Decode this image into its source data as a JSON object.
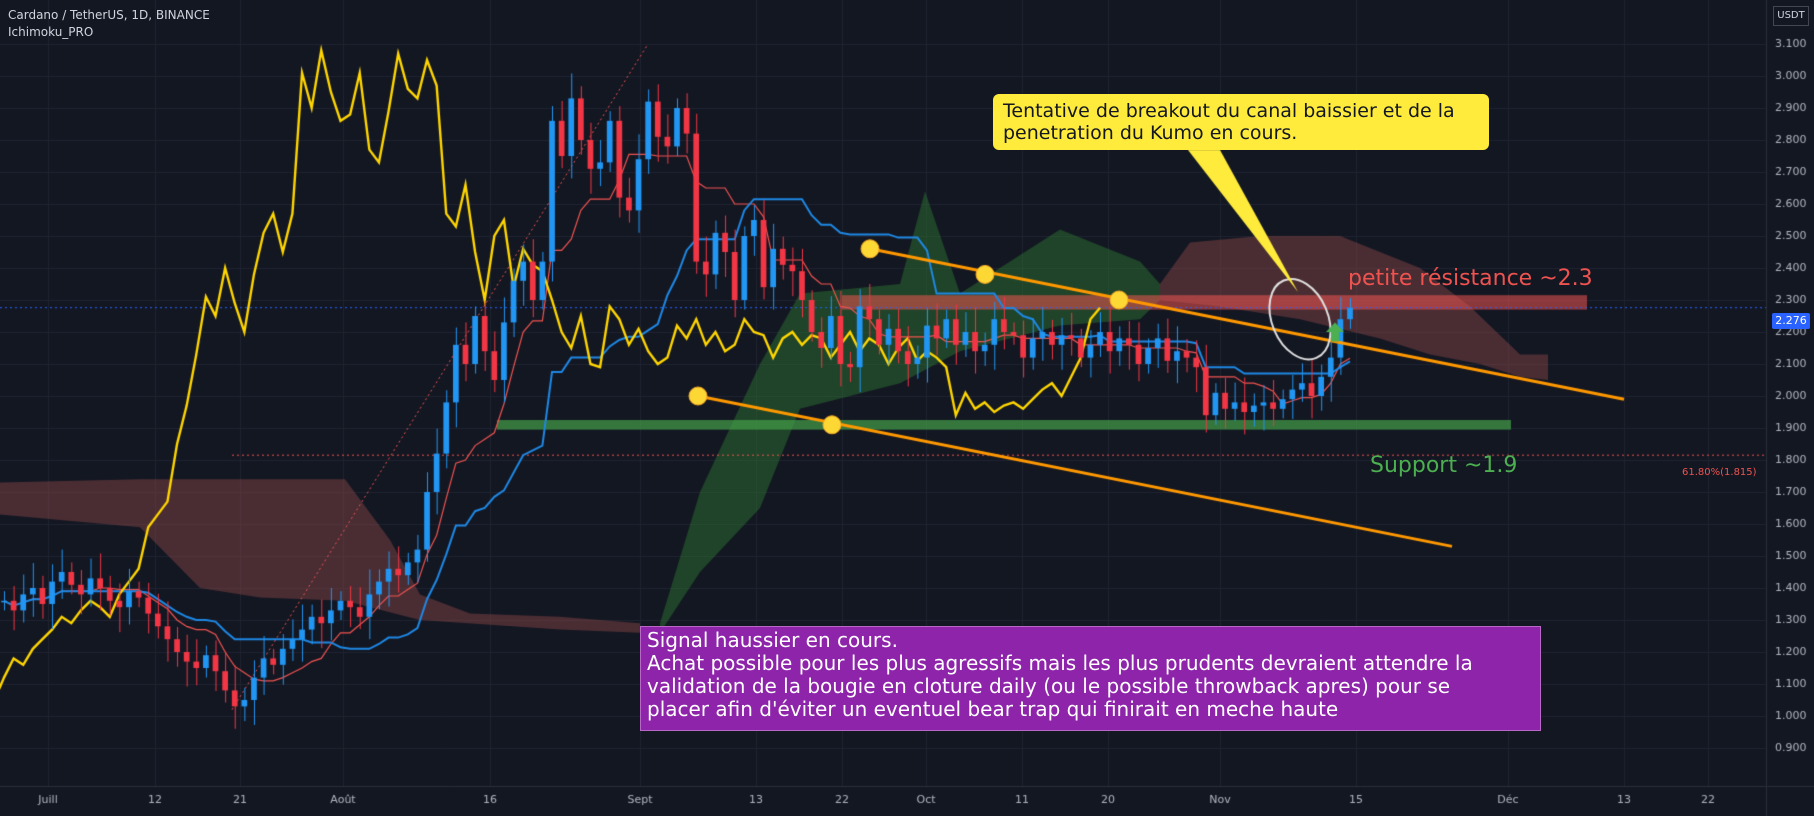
{
  "header": {
    "symbol": "Cardano / TetherUS, 1D, BINANCE",
    "indicator": "Ichimoku_PRO"
  },
  "price_axis": {
    "currency": "USDT",
    "current_price": "2.276"
  },
  "annotations": {
    "bubble": "Tentative de breakout du canal baissier et de la penetration du Kumo en cours.",
    "resistance": "petite résistance ~2.3",
    "support": "Support ~1.9",
    "fib": "61.80%(1.815)",
    "signal_lines": [
      "Signal haussier en cours.",
      "Achat possible pour les plus agressifs mais les plus prudents devraient attendre la",
      "validation de la bougie en cloture daily (ou le possible throwback apres) pour se",
      "placer afin d'éviter un eventuel bear trap qui finirait en meche haute"
    ]
  },
  "colors": {
    "background": "#131722",
    "up_candle": "#2196f3",
    "down_candle": "#f23645",
    "tenkan": "#ef5350",
    "kijun": "#1e88e5",
    "chikou": "#ffd600",
    "trendline": "#ff9800",
    "kumo_bull": "#2e7d32",
    "kumo_bear": "#8d4a4a",
    "resistance_zone": "#ef5350",
    "support_zone": "#43a047",
    "bubble": "#ffeb3b",
    "signal_box": "#8e24aa"
  },
  "chart_data": {
    "type": "candlestick",
    "yaxis": {
      "ticks": [
        "0.900",
        "1.000",
        "1.100",
        "1.200",
        "1.300",
        "1.400",
        "1.500",
        "1.600",
        "1.700",
        "1.800",
        "1.900",
        "2.000",
        "2.100",
        "2.200",
        "2.300",
        "2.400",
        "2.500",
        "2.600",
        "2.700",
        "2.800",
        "2.900",
        "3.000",
        "3.100"
      ],
      "range": [
        0.9,
        3.12
      ]
    },
    "xaxis": {
      "ticks": [
        "Juill",
        "12",
        "21",
        "Août",
        "16",
        "Sept",
        "13",
        "22",
        "Oct",
        "11",
        "20",
        "Nov",
        "15",
        "Déc",
        "13",
        "22"
      ]
    },
    "closes": [
      1.36,
      1.33,
      1.38,
      1.4,
      1.35,
      1.42,
      1.45,
      1.41,
      1.38,
      1.43,
      1.4,
      1.36,
      1.34,
      1.39,
      1.37,
      1.32,
      1.28,
      1.24,
      1.2,
      1.17,
      1.15,
      1.19,
      1.14,
      1.08,
      1.03,
      1.05,
      1.12,
      1.18,
      1.16,
      1.21,
      1.24,
      1.27,
      1.31,
      1.29,
      1.33,
      1.36,
      1.34,
      1.31,
      1.38,
      1.42,
      1.46,
      1.44,
      1.48,
      1.52,
      1.7,
      1.82,
      1.98,
      2.16,
      2.1,
      2.25,
      2.14,
      2.05,
      2.23,
      2.36,
      2.42,
      2.3,
      2.42,
      2.86,
      2.75,
      2.93,
      2.8,
      2.71,
      2.73,
      2.86,
      2.62,
      2.58,
      2.74,
      2.92,
      2.81,
      2.78,
      2.9,
      2.82,
      2.42,
      2.38,
      2.51,
      2.45,
      2.3,
      2.5,
      2.55,
      2.34,
      2.46,
      2.41,
      2.39,
      2.3,
      2.2,
      2.15,
      2.25,
      2.1,
      2.09,
      2.28,
      2.24,
      2.16,
      2.21,
      2.14,
      2.1,
      2.12,
      2.22,
      2.18,
      2.24,
      2.16,
      2.2,
      2.14,
      2.16,
      2.24,
      2.2,
      2.19,
      2.12,
      2.18,
      2.2,
      2.16,
      2.19,
      2.18,
      2.12,
      2.16,
      2.2,
      2.14,
      2.18,
      2.16,
      2.1,
      2.15,
      2.18,
      2.11,
      2.14,
      2.12,
      2.09,
      1.94,
      2.01,
      1.96,
      1.98,
      1.95,
      1.97,
      1.98,
      1.96,
      1.99,
      2.02,
      2.04,
      2.0,
      2.06,
      2.12,
      2.24,
      2.276
    ],
    "levels": {
      "resistance": 2.3,
      "support": 1.9,
      "fib_61_8": 1.815
    }
  }
}
